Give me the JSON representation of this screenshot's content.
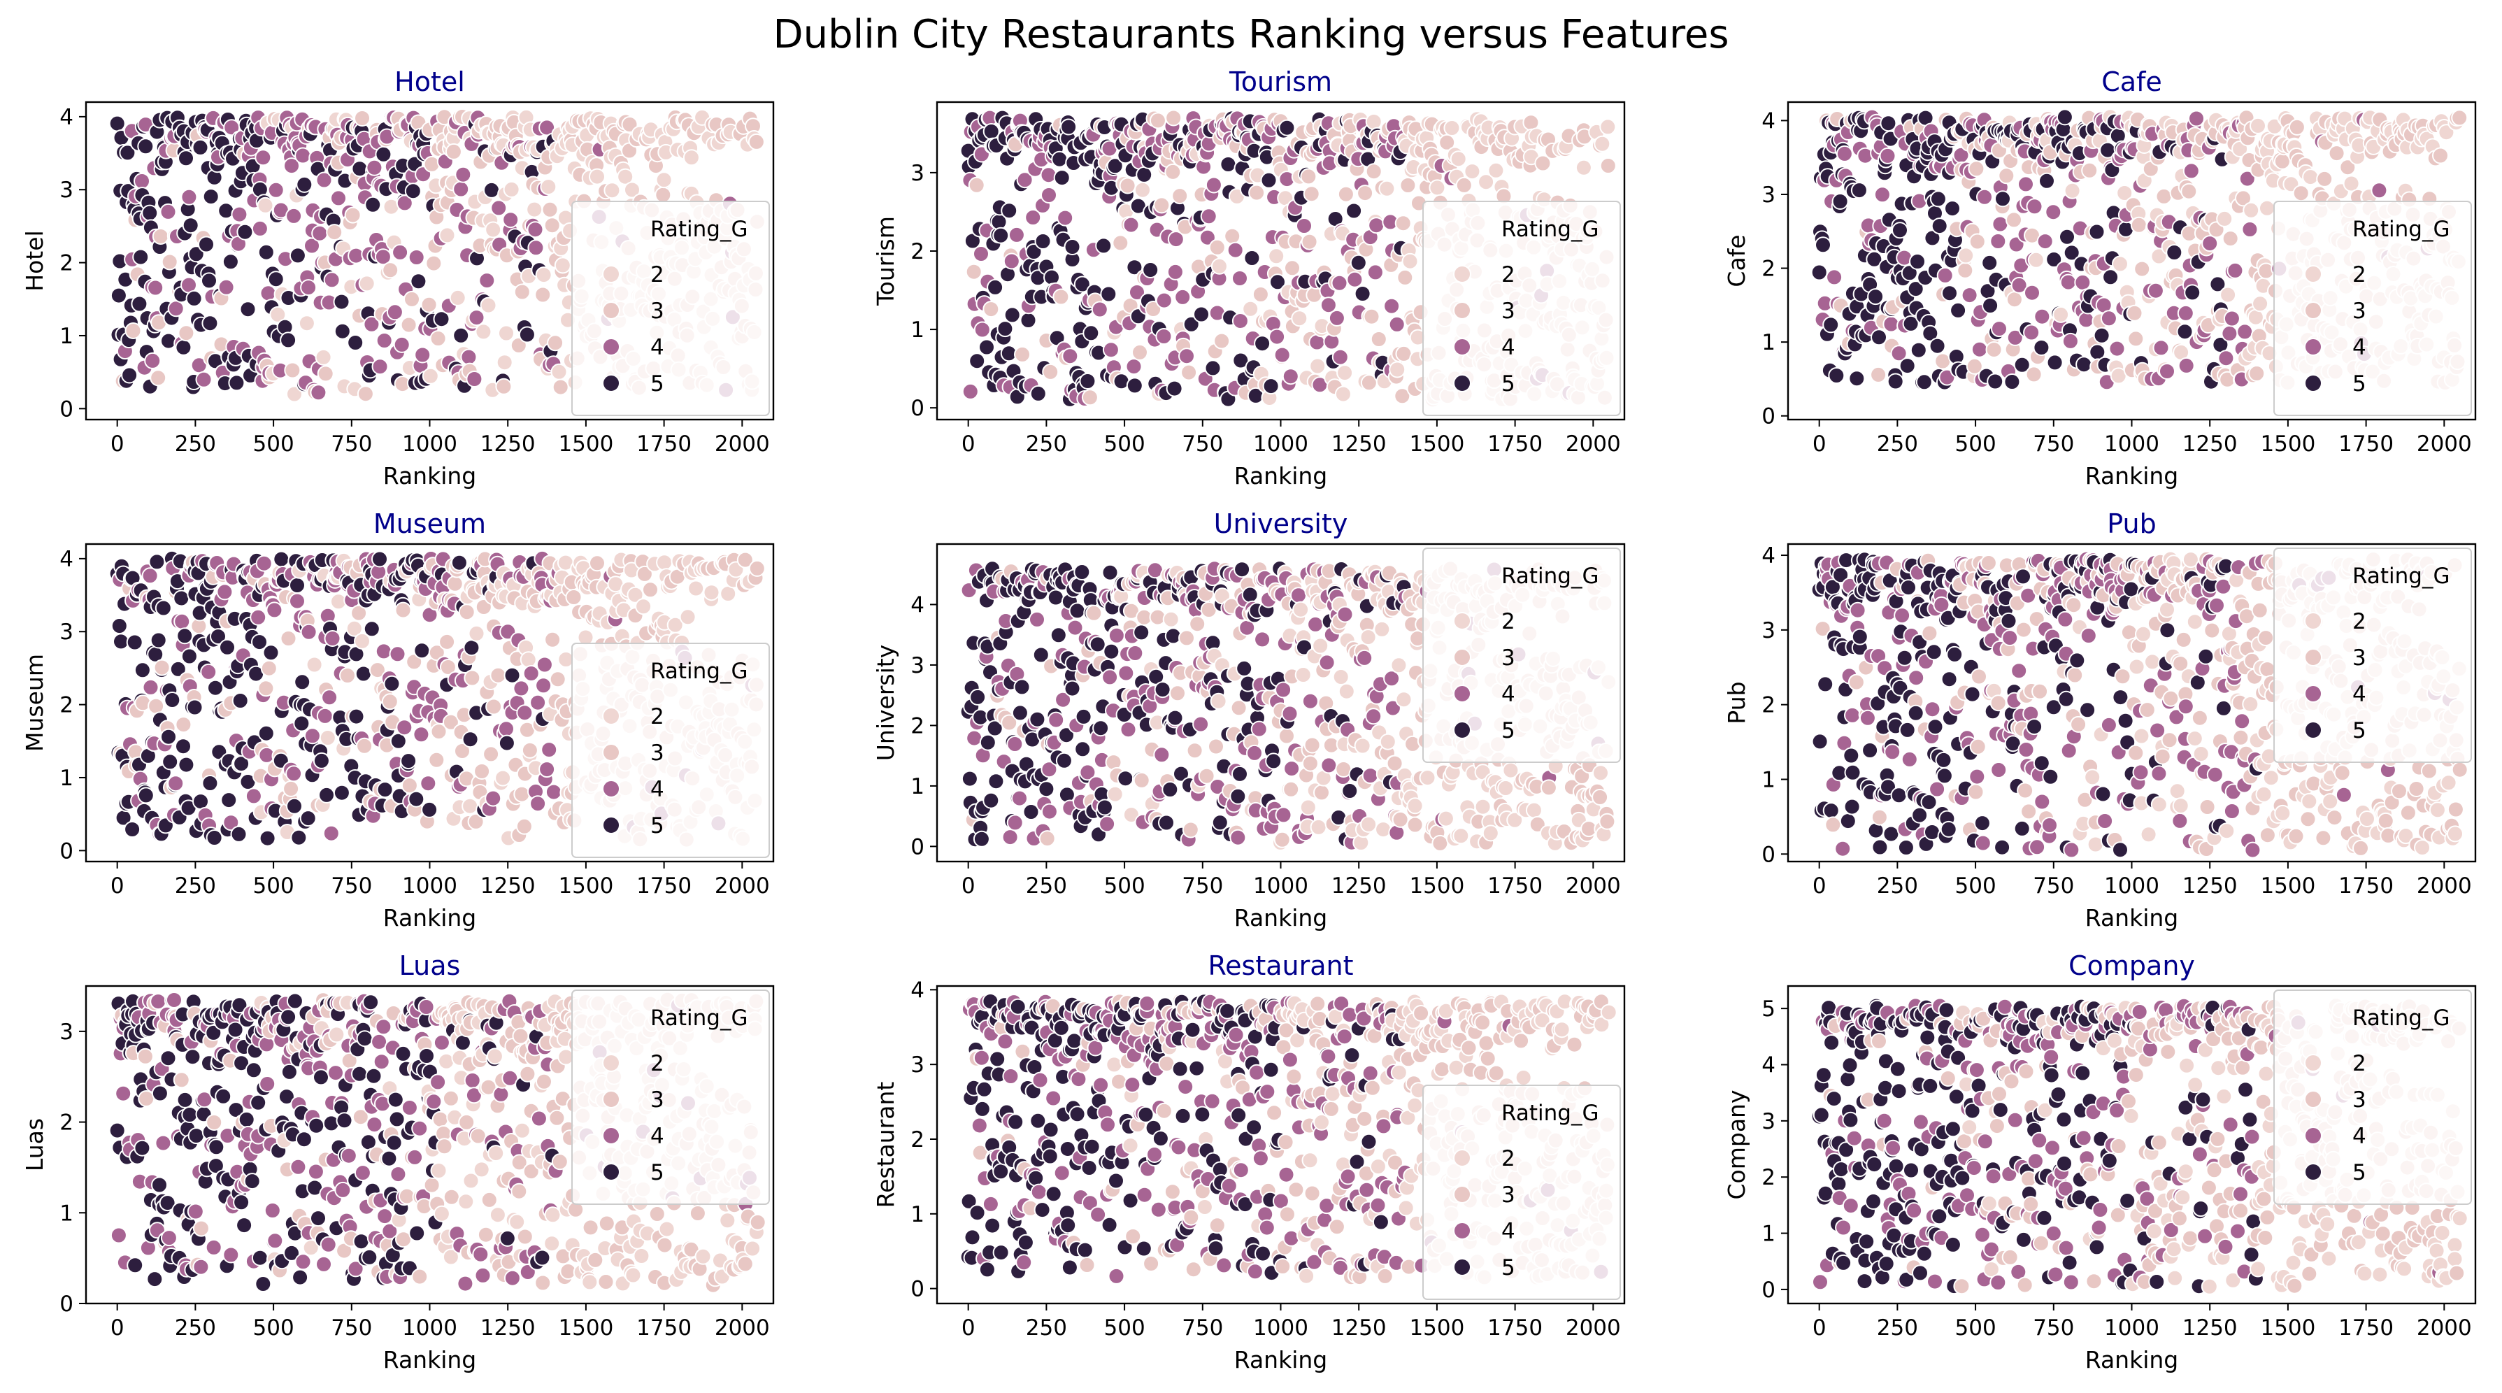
{
  "chart_data": {
    "type": "scatter",
    "title": "Dublin City Restaurants Ranking versus Features",
    "hue": {
      "title": "Rating_G",
      "levels": [
        "2",
        "3",
        "4",
        "5"
      ],
      "colors": {
        "2": "#efd6d2",
        "3": "#e8c7c4",
        "4": "#a76493",
        "5": "#2d1e3e"
      }
    },
    "panels": [
      {
        "name": "hotel",
        "title": "Hotel",
        "xlabel": "Ranking",
        "ylabel": "Hotel",
        "xlim": [
          -100,
          2100
        ],
        "ylim": [
          -0.15,
          4.2
        ],
        "xticks": [
          0,
          250,
          500,
          750,
          1000,
          1250,
          1500,
          1750,
          2000
        ],
        "yticks": [
          0,
          1,
          2,
          3,
          4
        ],
        "legend_pos": "lower-right",
        "y_max": 4.0,
        "y_min": 0.2,
        "seed": 11
      },
      {
        "name": "tourism",
        "title": "Tourism",
        "xlabel": "Ranking",
        "ylabel": "Tourism",
        "xlim": [
          -100,
          2100
        ],
        "ylim": [
          -0.15,
          3.9
        ],
        "xticks": [
          0,
          250,
          500,
          750,
          1000,
          1250,
          1500,
          1750,
          2000
        ],
        "yticks": [
          0,
          1,
          2,
          3
        ],
        "legend_pos": "lower-right",
        "y_max": 3.7,
        "y_min": 0.1,
        "seed": 22
      },
      {
        "name": "cafe",
        "title": "Cafe",
        "xlabel": "Ranking",
        "ylabel": "Cafe",
        "xlim": [
          -100,
          2100
        ],
        "ylim": [
          -0.05,
          4.25
        ],
        "xticks": [
          0,
          250,
          500,
          750,
          1000,
          1250,
          1500,
          1750,
          2000
        ],
        "yticks": [
          0,
          1,
          2,
          3,
          4
        ],
        "legend_pos": "lower-right",
        "y_max": 4.05,
        "y_min": 0.45,
        "seed": 33
      },
      {
        "name": "museum",
        "title": "Museum",
        "xlabel": "Ranking",
        "ylabel": "Museum",
        "xlim": [
          -100,
          2100
        ],
        "ylim": [
          -0.15,
          4.2
        ],
        "xticks": [
          0,
          250,
          500,
          750,
          1000,
          1250,
          1500,
          1750,
          2000
        ],
        "yticks": [
          0,
          1,
          2,
          3,
          4
        ],
        "legend_pos": "lower-right",
        "y_max": 4.0,
        "y_min": 0.15,
        "seed": 44
      },
      {
        "name": "university",
        "title": "University",
        "xlabel": "Ranking",
        "ylabel": "University",
        "xlim": [
          -100,
          2100
        ],
        "ylim": [
          -0.25,
          5.0
        ],
        "xticks": [
          0,
          250,
          500,
          750,
          1000,
          1250,
          1500,
          1750,
          2000
        ],
        "yticks": [
          0,
          1,
          2,
          3,
          4
        ],
        "legend_pos": "upper-right",
        "y_max": 4.6,
        "y_min": 0.05,
        "seed": 55
      },
      {
        "name": "pub",
        "title": "Pub",
        "xlabel": "Ranking",
        "ylabel": "Pub",
        "xlim": [
          -100,
          2100
        ],
        "ylim": [
          -0.1,
          4.15
        ],
        "xticks": [
          0,
          250,
          500,
          750,
          1000,
          1250,
          1500,
          1750,
          2000
        ],
        "yticks": [
          0,
          1,
          2,
          3,
          4
        ],
        "legend_pos": "upper-right",
        "y_max": 3.95,
        "y_min": 0.05,
        "seed": 66
      },
      {
        "name": "luas",
        "title": "Luas",
        "xlabel": "Ranking",
        "ylabel": "Luas",
        "xlim": [
          -100,
          2100
        ],
        "ylim": [
          0,
          3.5
        ],
        "xticks": [
          0,
          250,
          500,
          750,
          1000,
          1250,
          1500,
          1750,
          2000
        ],
        "yticks": [
          0,
          1,
          2,
          3
        ],
        "legend_pos": "upper-right",
        "y_max": 3.35,
        "y_min": 0.2,
        "seed": 77
      },
      {
        "name": "restaurant",
        "title": "Restaurant",
        "xlabel": "Ranking",
        "ylabel": "Restaurant",
        "xlim": [
          -100,
          2100
        ],
        "ylim": [
          -0.2,
          4.05
        ],
        "xticks": [
          0,
          250,
          500,
          750,
          1000,
          1250,
          1500,
          1750,
          2000
        ],
        "yticks": [
          0,
          1,
          2,
          3,
          4
        ],
        "legend_pos": "lower-right",
        "y_max": 3.85,
        "y_min": 0.15,
        "seed": 88
      },
      {
        "name": "company",
        "title": "Company",
        "xlabel": "Ranking",
        "ylabel": "Company",
        "xlim": [
          -100,
          2100
        ],
        "ylim": [
          -0.25,
          5.4
        ],
        "xticks": [
          0,
          250,
          500,
          750,
          1000,
          1250,
          1500,
          1750,
          2000
        ],
        "yticks": [
          0,
          1,
          2,
          3,
          4,
          5
        ],
        "legend_pos": "upper-right",
        "y_max": 5.05,
        "y_min": 0.05,
        "seed": 99
      }
    ]
  }
}
